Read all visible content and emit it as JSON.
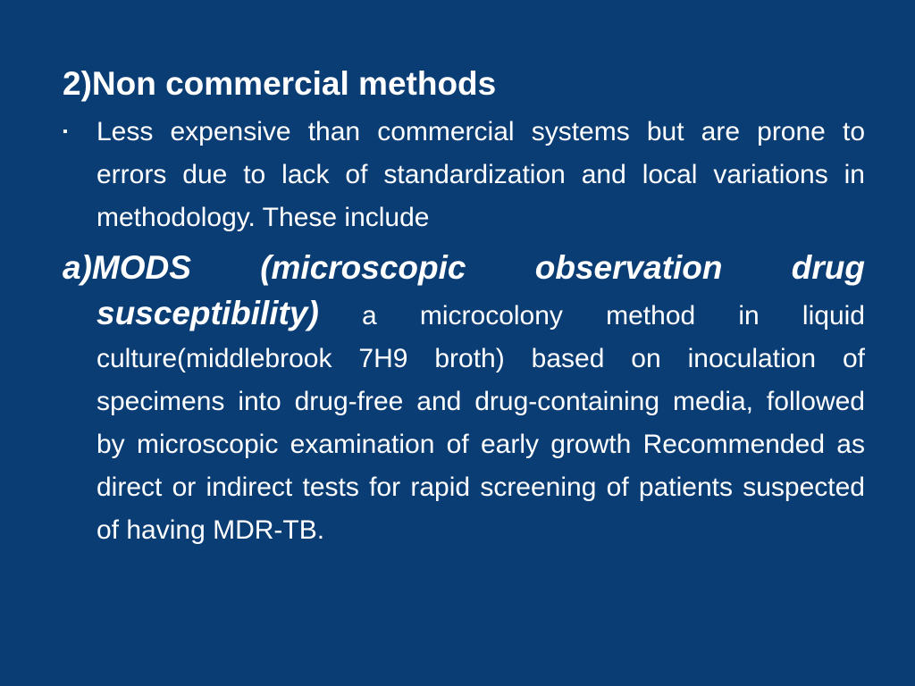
{
  "slide": {
    "title": "2)Non commercial methods",
    "bullet_marker": "▪",
    "bullet_text": "Less expensive than commercial systems but are prone to errors due to lack of standardization and local variations in methodology. These include",
    "sub_heading": "a)MODS (microscopic observation drug susceptibility)",
    "sub_text": "a microcolony method in liquid culture(middlebrook 7H9 broth) based on inoculation of specimens into drug-free and drug-containing media, followed by microscopic examination of early growth Recommended as direct or indirect tests for rapid screening of patients suspected of having MDR-TB."
  },
  "colors": {
    "background": "#0b3d75",
    "text": "#ffffff"
  }
}
